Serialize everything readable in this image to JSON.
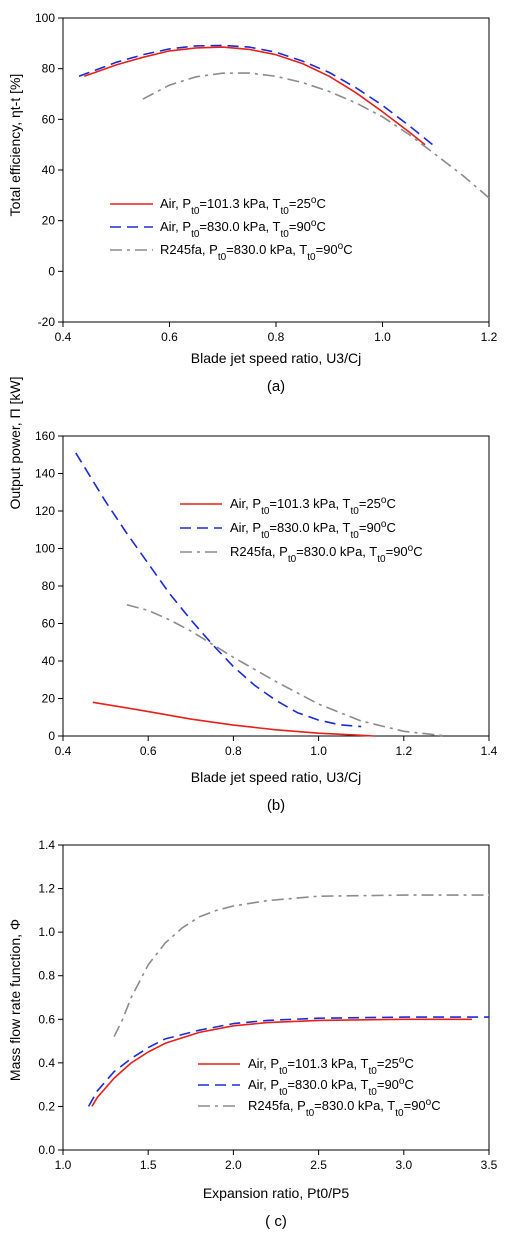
{
  "chart_data": [
    {
      "type": "line",
      "panel_label": "(a)",
      "xlabel": "Blade jet speed ratio, U3/Cj",
      "ylabel": "Total efficiency, ηt-t [%]",
      "xlim": [
        0.4,
        1.2
      ],
      "ylim": [
        -20,
        100
      ],
      "xticks": [
        0.4,
        0.6,
        0.8,
        1.0,
        1.2
      ],
      "xtick_labels": [
        "0.4",
        "0.6",
        "0.8",
        "1.0",
        "1.2"
      ],
      "yticks": [
        -20,
        0,
        20,
        40,
        60,
        80,
        100
      ],
      "ytick_labels": [
        "-20",
        "0",
        "20",
        "40",
        "60",
        "80",
        "100"
      ],
      "grid": false,
      "legend_position": "lower-left",
      "series": [
        {
          "name": "Air, Pt0=101.3 kPa, Tt0=25oC",
          "color": "#e8201a",
          "dash": "solid",
          "x": [
            0.44,
            0.5,
            0.55,
            0.6,
            0.65,
            0.7,
            0.75,
            0.8,
            0.85,
            0.9,
            0.95,
            1.0,
            1.05,
            1.08
          ],
          "y": [
            77,
            81.5,
            84.5,
            87,
            88.2,
            88.5,
            87.6,
            85.5,
            82,
            77,
            70.5,
            63,
            55,
            50
          ]
        },
        {
          "name": "Air, Pt0=830.0 kPa, Tt0=90oC",
          "color": "#1a2bd6",
          "dash": "longdash",
          "x": [
            0.43,
            0.5,
            0.55,
            0.6,
            0.65,
            0.7,
            0.75,
            0.8,
            0.85,
            0.9,
            0.95,
            1.0,
            1.05,
            1.1
          ],
          "y": [
            77,
            82.5,
            85.5,
            87.8,
            89,
            89.2,
            88.5,
            86.5,
            83,
            78.5,
            72.5,
            65.5,
            57.5,
            49
          ]
        },
        {
          "name": "R245fa, Pt0=830.0 kPa, Tt0=90oC",
          "color": "#8c8c8c",
          "dash": "dashdot",
          "x": [
            0.55,
            0.6,
            0.65,
            0.7,
            0.75,
            0.8,
            0.85,
            0.9,
            0.95,
            1.0,
            1.05,
            1.1,
            1.15,
            1.2
          ],
          "y": [
            68,
            73.5,
            76.8,
            78.2,
            78.3,
            77,
            74.5,
            71,
            66.5,
            61,
            54,
            46,
            38,
            29
          ]
        }
      ]
    },
    {
      "type": "line",
      "panel_label": "(b)",
      "xlabel": "Blade jet speed ratio, U3/Cj",
      "ylabel": "Output power, Π [kW]",
      "xlim": [
        0.4,
        1.4
      ],
      "ylim": [
        0,
        160
      ],
      "xticks": [
        0.4,
        0.6,
        0.8,
        1.0,
        1.2,
        1.4
      ],
      "xtick_labels": [
        "0.4",
        "0.6",
        "0.8",
        "1.0",
        "1.2",
        "1.4"
      ],
      "yticks": [
        0,
        20,
        40,
        60,
        80,
        100,
        120,
        140,
        160
      ],
      "ytick_labels": [
        "0",
        "20",
        "40",
        "60",
        "80",
        "100",
        "120",
        "140",
        "160"
      ],
      "grid": false,
      "legend_position": "upper-right",
      "series": [
        {
          "name": "Air, Pt0=101.3 kPa, Tt0=25oC",
          "color": "#e8201a",
          "dash": "solid",
          "x": [
            0.47,
            0.55,
            0.6,
            0.7,
            0.8,
            0.9,
            1.0,
            1.1,
            1.13
          ],
          "y": [
            18,
            15,
            13,
            9,
            5.8,
            3.3,
            1.5,
            0.4,
            0
          ]
        },
        {
          "name": "Air, Pt0=830.0 kPa, Tt0=90oC",
          "color": "#1a2bd6",
          "dash": "longdash",
          "x": [
            0.43,
            0.5,
            0.55,
            0.6,
            0.65,
            0.7,
            0.75,
            0.8,
            0.85,
            0.9,
            0.95,
            1.0,
            1.05,
            1.1
          ],
          "y": [
            151,
            125,
            108,
            92,
            76,
            62,
            49,
            37,
            27,
            19,
            12.5,
            8.5,
            6,
            5
          ]
        },
        {
          "name": "R245fa, Pt0=830.0 kPa, Tt0=90oC",
          "color": "#8c8c8c",
          "dash": "dashdot",
          "x": [
            0.55,
            0.6,
            0.65,
            0.7,
            0.8,
            0.9,
            1.0,
            1.1,
            1.2,
            1.3
          ],
          "y": [
            70,
            67,
            62,
            56,
            42,
            29,
            17,
            8,
            2.5,
            0
          ]
        }
      ]
    },
    {
      "type": "line",
      "panel_label": "( c)",
      "xlabel": "Expansion ratio, Pt0/P5",
      "ylabel": "Mass flow rate function, Φ",
      "xlim": [
        1.0,
        3.5
      ],
      "ylim": [
        0.0,
        1.4
      ],
      "xticks": [
        1.0,
        1.5,
        2.0,
        2.5,
        3.0,
        3.5
      ],
      "xtick_labels": [
        "1.0",
        "1.5",
        "2.0",
        "2.5",
        "3.0",
        "3.5"
      ],
      "yticks": [
        0.0,
        0.2,
        0.4,
        0.6,
        0.8,
        1.0,
        1.2,
        1.4
      ],
      "ytick_labels": [
        "0.0",
        "0.2",
        "0.4",
        "0.6",
        "0.8",
        "1.0",
        "1.2",
        "1.4"
      ],
      "grid": false,
      "legend_position": "lower-right",
      "series": [
        {
          "name": "Air, Pt0=101.3 kPa, Tt0=25oC",
          "color": "#e8201a",
          "dash": "solid",
          "x": [
            1.17,
            1.2,
            1.3,
            1.4,
            1.5,
            1.6,
            1.8,
            2.0,
            2.2,
            2.5,
            3.0,
            3.4
          ],
          "y": [
            0.2,
            0.24,
            0.33,
            0.4,
            0.45,
            0.49,
            0.54,
            0.57,
            0.585,
            0.595,
            0.6,
            0.6
          ]
        },
        {
          "name": "Air, Pt0=830.0 kPa, Tt0=90oC",
          "color": "#1a2bd6",
          "dash": "longdash",
          "x": [
            1.15,
            1.2,
            1.3,
            1.4,
            1.5,
            1.6,
            1.8,
            2.0,
            2.2,
            2.5,
            3.0,
            3.5
          ],
          "y": [
            0.2,
            0.27,
            0.36,
            0.42,
            0.47,
            0.51,
            0.55,
            0.58,
            0.595,
            0.605,
            0.61,
            0.61
          ]
        },
        {
          "name": "R245fa, Pt0=830.0 kPa, Tt0=90oC",
          "color": "#8c8c8c",
          "dash": "dashdot",
          "x": [
            1.3,
            1.35,
            1.4,
            1.5,
            1.6,
            1.7,
            1.8,
            1.9,
            2.0,
            2.2,
            2.5,
            3.0,
            3.5
          ],
          "y": [
            0.52,
            0.6,
            0.7,
            0.85,
            0.95,
            1.02,
            1.07,
            1.1,
            1.12,
            1.145,
            1.165,
            1.17,
            1.17
          ]
        }
      ]
    }
  ]
}
